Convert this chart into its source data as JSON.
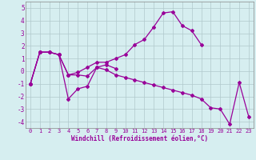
{
  "xlabel": "Windchill (Refroidissement éolien,°C)",
  "background_color": "#d6eef0",
  "line_color": "#990099",
  "grid_color": "#b0c8cc",
  "x": [
    0,
    1,
    2,
    3,
    4,
    5,
    6,
    7,
    8,
    9,
    10,
    11,
    12,
    13,
    14,
    15,
    16,
    17,
    18,
    19,
    20,
    21,
    22,
    23
  ],
  "line1_x": [
    0,
    1,
    2,
    3,
    4,
    5,
    6,
    7,
    8,
    9,
    10,
    11,
    12,
    13,
    14,
    15,
    16,
    17,
    18
  ],
  "line1_y": [
    -1.0,
    1.5,
    1.5,
    1.3,
    -0.3,
    -0.1,
    0.3,
    0.7,
    0.7,
    1.0,
    1.3,
    2.1,
    2.5,
    3.5,
    4.6,
    4.7,
    3.6,
    3.2,
    2.1
  ],
  "line2_x": [
    0,
    1,
    2,
    3,
    4,
    5,
    6,
    7,
    8,
    9
  ],
  "line2_y": [
    -1.0,
    1.5,
    1.5,
    1.3,
    -2.2,
    -1.4,
    -1.2,
    0.3,
    0.5,
    0.2
  ],
  "line3_x": [
    0,
    1,
    2,
    3,
    4,
    5,
    6,
    7,
    8,
    9,
    10,
    11,
    12,
    13,
    14,
    15,
    16,
    17,
    18,
    19,
    20,
    21,
    22,
    23
  ],
  "line3_y": [
    -1.0,
    1.5,
    1.5,
    1.3,
    -0.3,
    -0.3,
    -0.4,
    0.3,
    0.1,
    -0.3,
    -0.5,
    -0.7,
    -0.9,
    -1.1,
    -1.3,
    -1.5,
    -1.7,
    -1.9,
    -2.2,
    -2.9,
    -3.0,
    -4.2,
    -0.9,
    -3.6
  ],
  "ylim": [
    -4.5,
    5.5
  ],
  "xlim": [
    -0.5,
    23.5
  ]
}
